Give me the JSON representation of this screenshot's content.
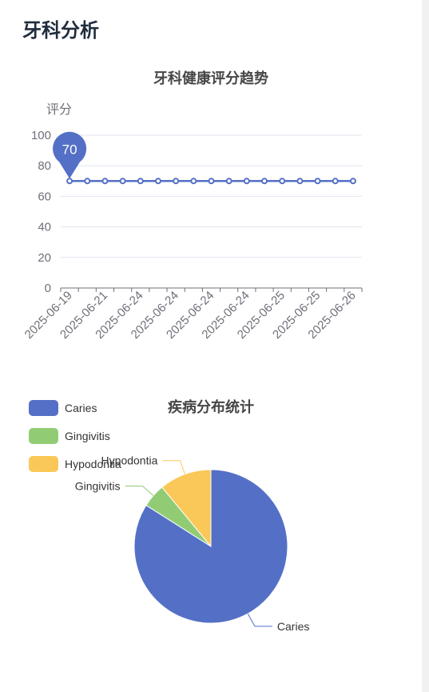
{
  "page": {
    "title": "牙科分析"
  },
  "colors": {
    "blue": "#5470c6",
    "green": "#91cc75",
    "yellow": "#fac858",
    "grid": "#e0e6f1",
    "axis": "#6e7079"
  },
  "chart_data": [
    {
      "type": "line",
      "title": "牙科健康评分趋势",
      "ylabel": "评分",
      "ylim": [
        0,
        100
      ],
      "yticks": [
        0,
        20,
        40,
        60,
        80,
        100
      ],
      "x": [
        "2025-06-19",
        "2025-06-21",
        "2025-06-21",
        "2025-06-24",
        "2025-06-24",
        "2025-06-24",
        "2025-06-24",
        "2025-06-24",
        "2025-06-24",
        "2025-06-24",
        "2025-06-24",
        "2025-06-25",
        "2025-06-25",
        "2025-06-25",
        "2025-06-25",
        "2025-06-25",
        "2025-06-26"
      ],
      "x_labels": [
        "2025-06-19",
        "2025-06-21",
        "2025-06-24",
        "2025-06-24",
        "2025-06-24",
        "2025-06-24",
        "2025-06-25",
        "2025-06-25",
        "2025-06-26"
      ],
      "values": [
        70,
        70,
        70,
        70,
        70,
        70,
        70,
        70,
        70,
        70,
        70,
        70,
        70,
        70,
        70,
        70,
        70
      ],
      "markpoint": {
        "index": 0,
        "value": "70"
      },
      "grid": true
    },
    {
      "type": "pie",
      "title": "疾病分布统计",
      "legend_position": "top-left",
      "slices": [
        {
          "name": "Caries",
          "value": 84,
          "color": "#5470c6"
        },
        {
          "name": "Gingivitis",
          "value": 5,
          "color": "#91cc75"
        },
        {
          "name": "Hypodontia",
          "value": 11,
          "color": "#fac858"
        }
      ]
    }
  ]
}
